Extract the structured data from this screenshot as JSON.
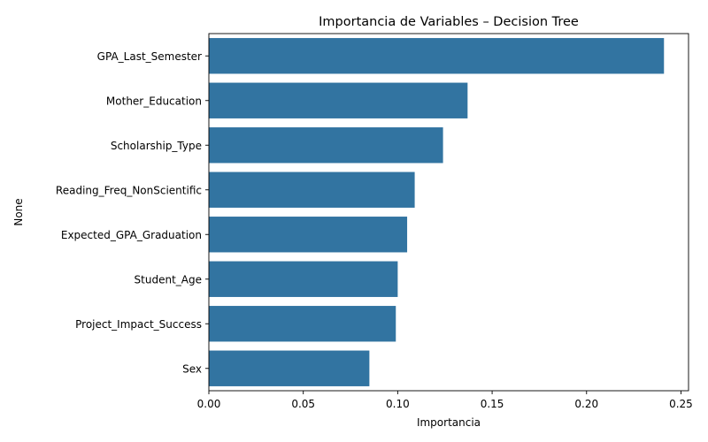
{
  "chart_data": {
    "type": "bar",
    "orientation": "horizontal",
    "title": "Importancia de Variables – Decision Tree",
    "xlabel": "Importancia",
    "ylabel": "None",
    "categories": [
      "GPA_Last_Semester",
      "Mother_Education",
      "Scholarship_Type",
      "Reading_Freq_NonScientific",
      "Expected_GPA_Graduation",
      "Student_Age",
      "Project_Impact_Success",
      "Sex"
    ],
    "values": [
      0.241,
      0.137,
      0.124,
      0.109,
      0.105,
      0.1,
      0.099,
      0.085
    ],
    "xlim": [
      0,
      0.254
    ],
    "xticks": [
      0.0,
      0.05,
      0.1,
      0.15,
      0.2,
      0.25
    ],
    "xtick_labels": [
      "0.00",
      "0.05",
      "0.10",
      "0.15",
      "0.20",
      "0.25"
    ],
    "bar_color": "#3274a1",
    "grid": false,
    "legend": "none"
  }
}
